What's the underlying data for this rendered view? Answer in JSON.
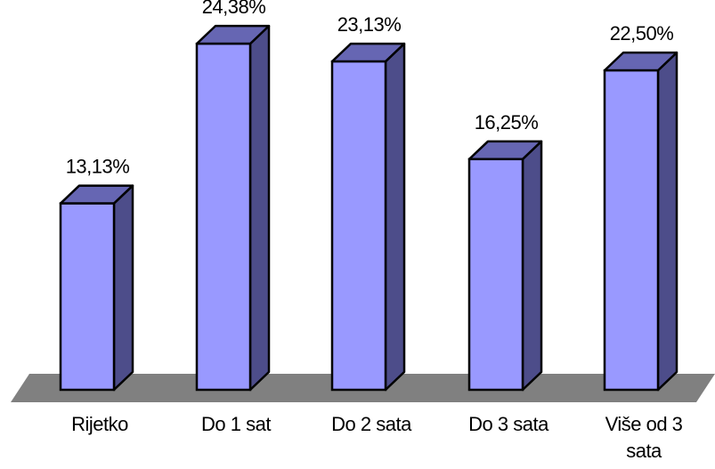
{
  "chart_data": {
    "type": "bar",
    "categories": [
      "Rijetko",
      "Do 1 sat",
      "Do 2 sata",
      "Do 3 sata",
      "Više od 3 sata"
    ],
    "category_lines": [
      [
        "Rijetko"
      ],
      [
        "Do 1 sat"
      ],
      [
        "Do 2 sata"
      ],
      [
        "Do 3 sata"
      ],
      [
        "Više od 3",
        "sata"
      ]
    ],
    "values": [
      13.13,
      24.38,
      23.13,
      16.25,
      22.5
    ],
    "data_labels": [
      "13,13%",
      "24,38%",
      "23,13%",
      "16,25%",
      "22,50%"
    ],
    "title": "",
    "xlabel": "",
    "ylabel": "",
    "grid": false,
    "legend": "none",
    "style": "3d-column",
    "colors": {
      "bar_front": "#9999ff",
      "bar_side": "#4d4d8a",
      "bar_top": "#6666b3",
      "outline": "#000000",
      "floor": "#808080"
    }
  }
}
